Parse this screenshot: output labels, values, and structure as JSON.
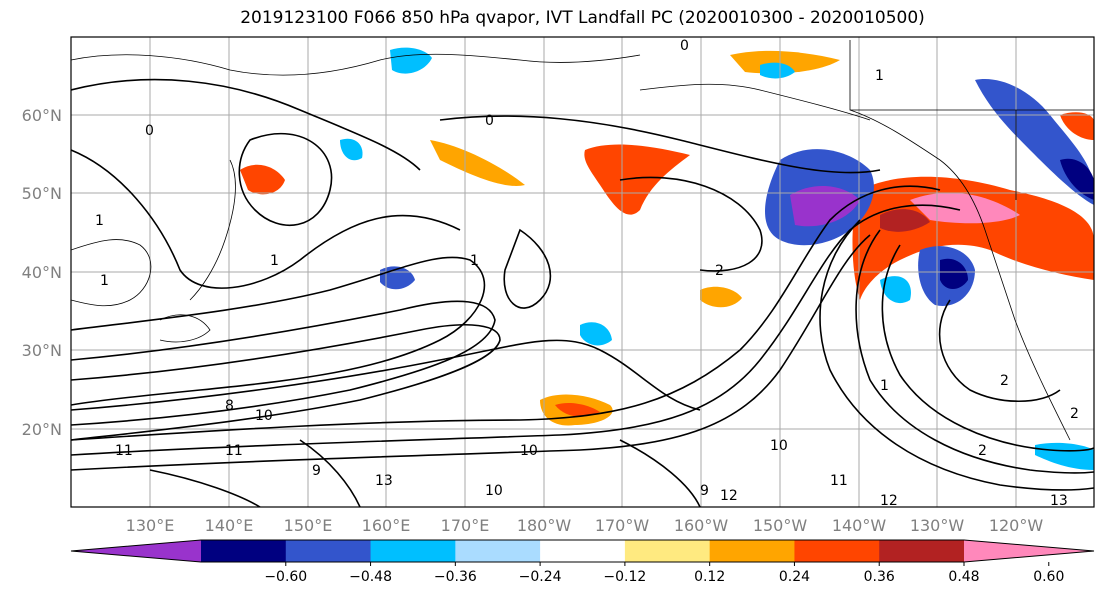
{
  "title": "2019123100 F066 850 hPa qvapor, IVT Landfall PC (2020010300 - 2020010500)",
  "map": {
    "lat_labels": [
      "60°N",
      "50°N",
      "40°N",
      "30°N",
      "20°N"
    ],
    "lon_labels": [
      "130°E",
      "140°E",
      "150°E",
      "160°E",
      "170°E",
      "180°W",
      "170°W",
      "160°W",
      "150°W",
      "140°W",
      "130°W",
      "120°W"
    ],
    "contour_labels": [
      "0",
      "0",
      "0",
      "1",
      "1",
      "1",
      "1",
      "1",
      "1",
      "2",
      "2",
      "2",
      "2",
      "8",
      "9",
      "9",
      "10",
      "10",
      "10",
      "10",
      "11",
      "11",
      "11",
      "12",
      "12",
      "13",
      "13"
    ]
  },
  "colorbar": {
    "colors": [
      "#9933cc",
      "#000080",
      "#3355cc",
      "#00bfff",
      "#aadcff",
      "#ffffff",
      "#ffea80",
      "#ffa500",
      "#ff4500",
      "#b22222",
      "#ff88bb"
    ],
    "tick_labels": [
      "−0.60",
      "−0.48",
      "−0.36",
      "−0.24",
      "−0.12",
      "0.12",
      "0.24",
      "0.36",
      "0.48",
      "0.60"
    ]
  }
}
